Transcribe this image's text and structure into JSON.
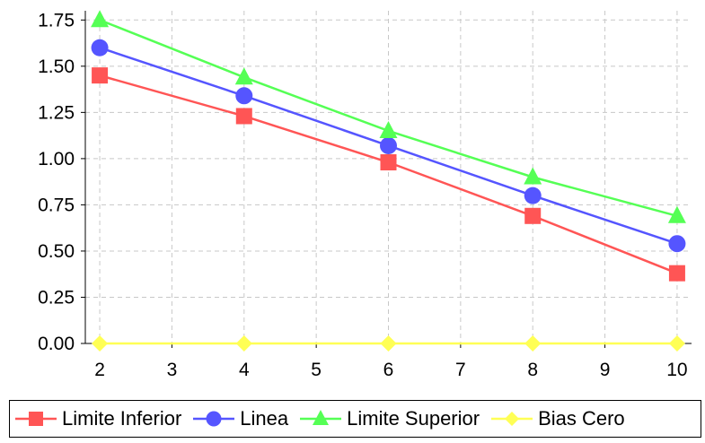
{
  "chart_data": {
    "type": "line",
    "title": "",
    "xlabel": "",
    "ylabel": "",
    "x": [
      2,
      4,
      6,
      8,
      10
    ],
    "x_ticks": [
      "2",
      "3",
      "4",
      "5",
      "6",
      "7",
      "8",
      "9",
      "10"
    ],
    "y_ticks": [
      "0.00",
      "0.25",
      "0.50",
      "0.75",
      "1.00",
      "1.25",
      "1.50",
      "1.75"
    ],
    "xlim": [
      1.8,
      10.2
    ],
    "ylim": [
      0,
      1.8
    ],
    "grid": true,
    "legend_position": "bottom",
    "series": [
      {
        "name": "Limite Inferior",
        "color": "#ff5555",
        "marker": "square",
        "values": [
          1.45,
          1.23,
          0.98,
          0.69,
          0.38
        ]
      },
      {
        "name": "Linea",
        "color": "#5555ff",
        "marker": "circle",
        "values": [
          1.6,
          1.34,
          1.07,
          0.8,
          0.54
        ]
      },
      {
        "name": "Limite Superior",
        "color": "#55ff55",
        "marker": "triangle",
        "values": [
          1.75,
          1.44,
          1.15,
          0.9,
          0.69
        ]
      },
      {
        "name": "Bias Cero",
        "color": "#ffff55",
        "marker": "diamond",
        "values": [
          0,
          0,
          0,
          0,
          0
        ]
      }
    ]
  }
}
